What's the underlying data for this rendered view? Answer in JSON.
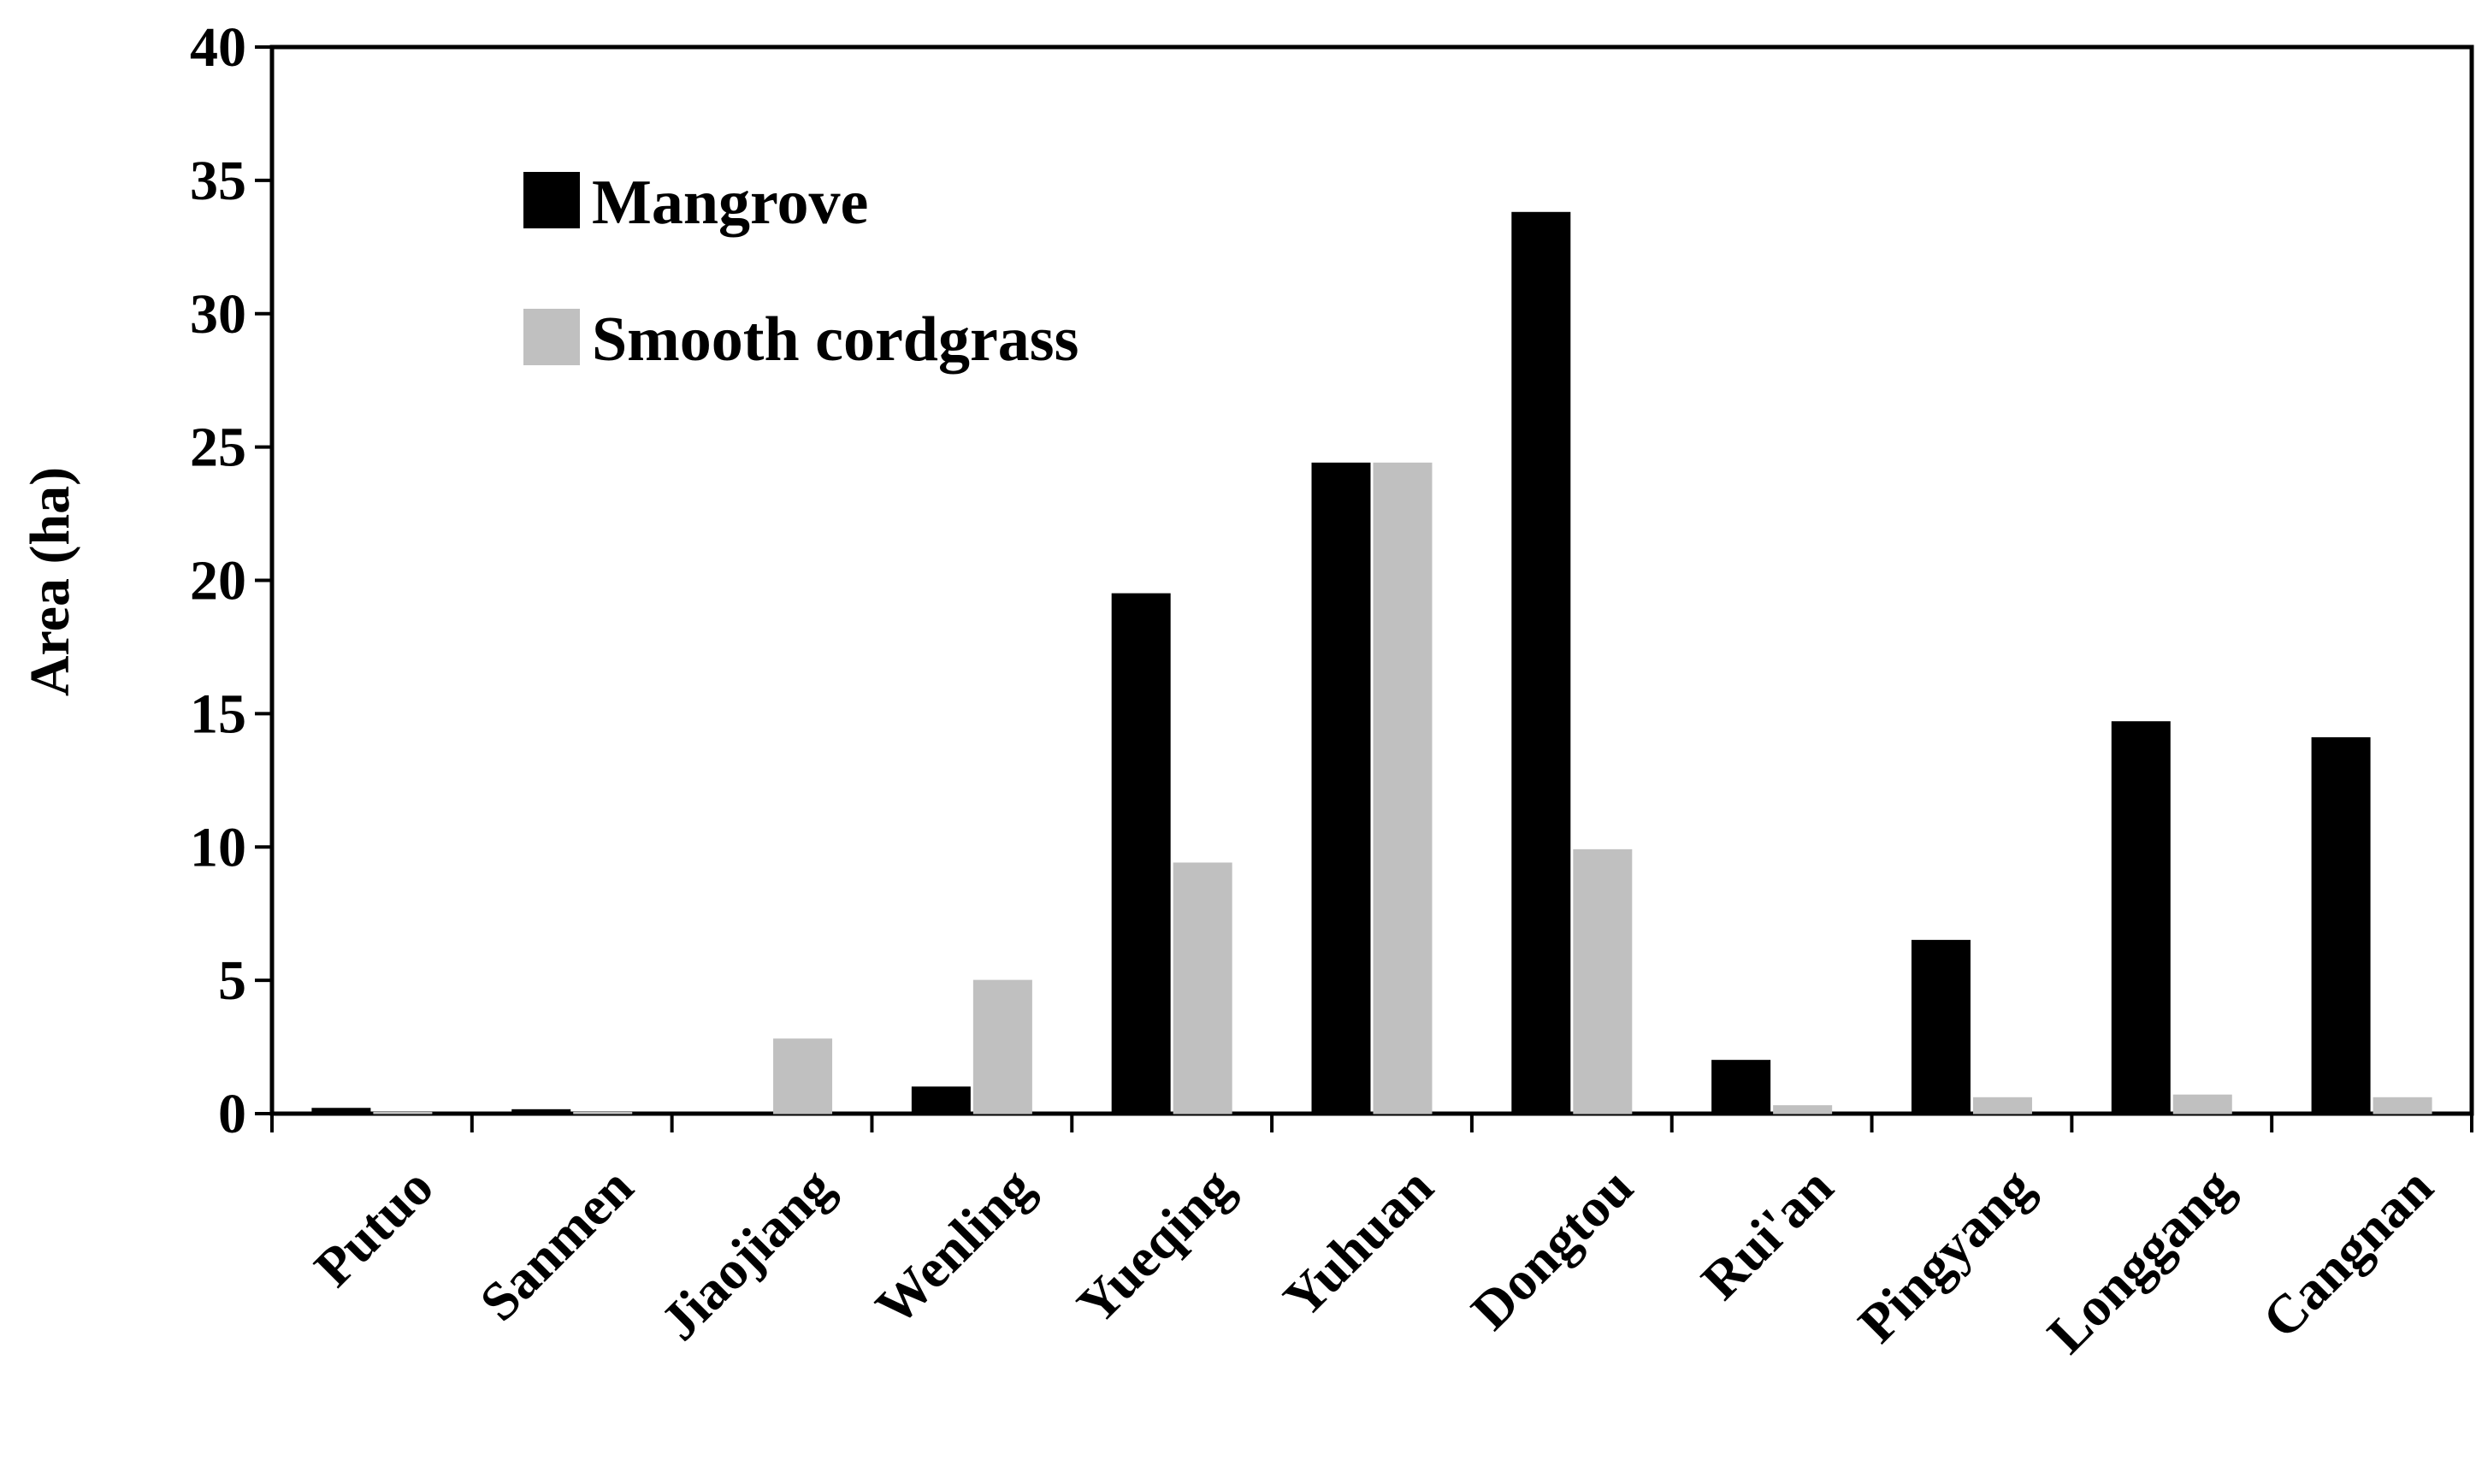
{
  "chart_data": {
    "type": "bar",
    "ylabel": "Area (ha)",
    "xlabel": "",
    "ylim": [
      0,
      40
    ],
    "yticks": [
      "0",
      "5",
      "10",
      "15",
      "20",
      "25",
      "30",
      "35",
      "40"
    ],
    "grid": false,
    "legend_position": "top-left",
    "categories": [
      "Putuo",
      "Sanmen",
      "Jiaojiang",
      "Wenling",
      "Yueqing",
      "Yuhuan",
      "Dongtou",
      "Rui'an",
      "Pingyang",
      "Longgang",
      "Cangnan"
    ],
    "series": [
      {
        "name": "Mangrove",
        "color": "#000000",
        "values": [
          0.2,
          0.15,
          0.05,
          1.0,
          19.5,
          24.4,
          33.8,
          2.0,
          6.5,
          14.7,
          14.1
        ]
      },
      {
        "name": "Smooth cordgrass",
        "color": "#c0c0c0",
        "values": [
          0.05,
          0.05,
          2.8,
          5.0,
          9.4,
          24.4,
          9.9,
          0.3,
          0.6,
          0.7,
          0.6
        ]
      }
    ]
  }
}
